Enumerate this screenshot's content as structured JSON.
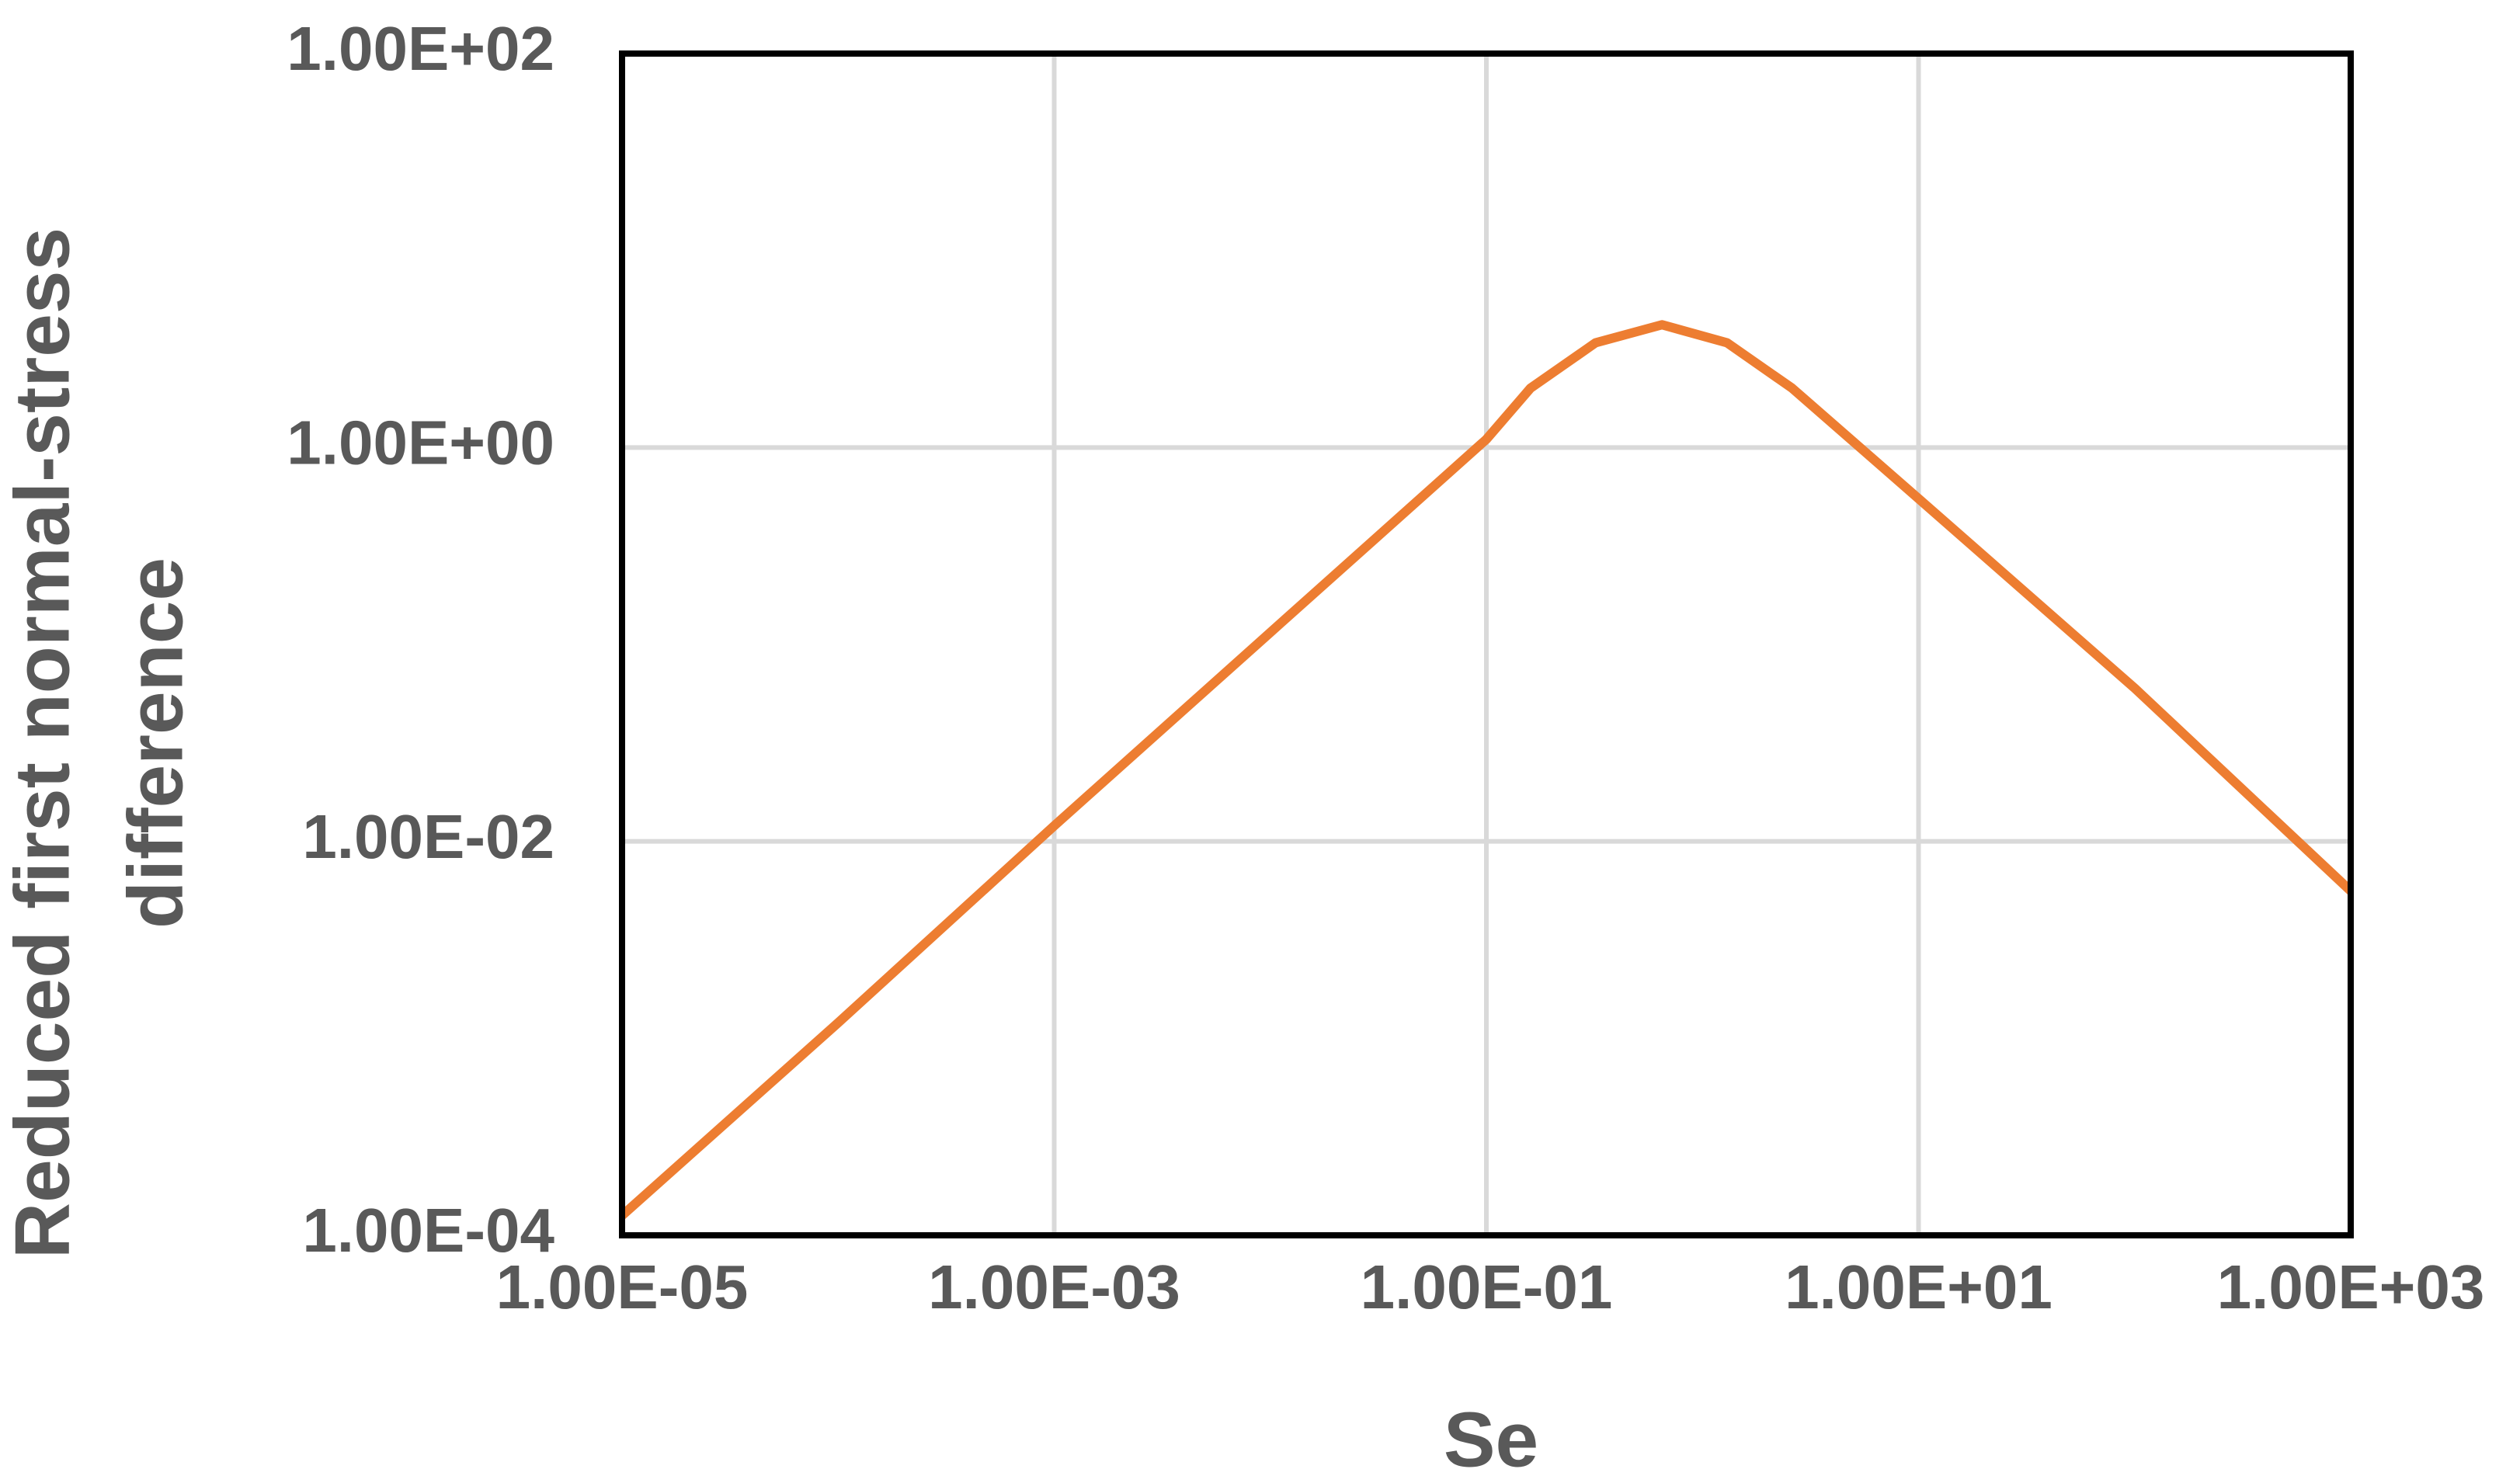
{
  "chart_data": {
    "type": "line",
    "log_x": true,
    "log_y": true,
    "grid": true,
    "xlabel": "Se",
    "ylabel": [
      "Reduced first normal-stress",
      "difference"
    ],
    "xlim": [
      1e-05,
      1000
    ],
    "ylim": [
      0.0001,
      100
    ],
    "xticks": [
      {
        "value": 1e-05,
        "label": "1.00E-05"
      },
      {
        "value": 0.001,
        "label": "1.00E-03"
      },
      {
        "value": 0.1,
        "label": "1.00E-01"
      },
      {
        "value": 10,
        "label": "1.00E+01"
      },
      {
        "value": 1000,
        "label": "1.00E+03"
      }
    ],
    "yticks": [
      {
        "value": 0.0001,
        "label": "1.00E-04"
      },
      {
        "value": 0.01,
        "label": "1.00E-02"
      },
      {
        "value": 1,
        "label": "1.00E+00"
      },
      {
        "value": 100,
        "label": "1.00E+02"
      }
    ],
    "x": [
      1e-05,
      0.0001,
      0.001,
      0.01,
      0.1,
      0.16,
      0.32,
      0.65,
      1.3,
      2.6,
      10,
      100,
      1000
    ],
    "series": [
      {
        "color": "#ed7d31",
        "values": [
          0.000126,
          0.0012,
          0.012,
          0.115,
          1.1,
          2.0,
          3.4,
          4.2,
          3.4,
          2.0,
          0.55,
          0.06,
          0.0056
        ]
      }
    ]
  }
}
